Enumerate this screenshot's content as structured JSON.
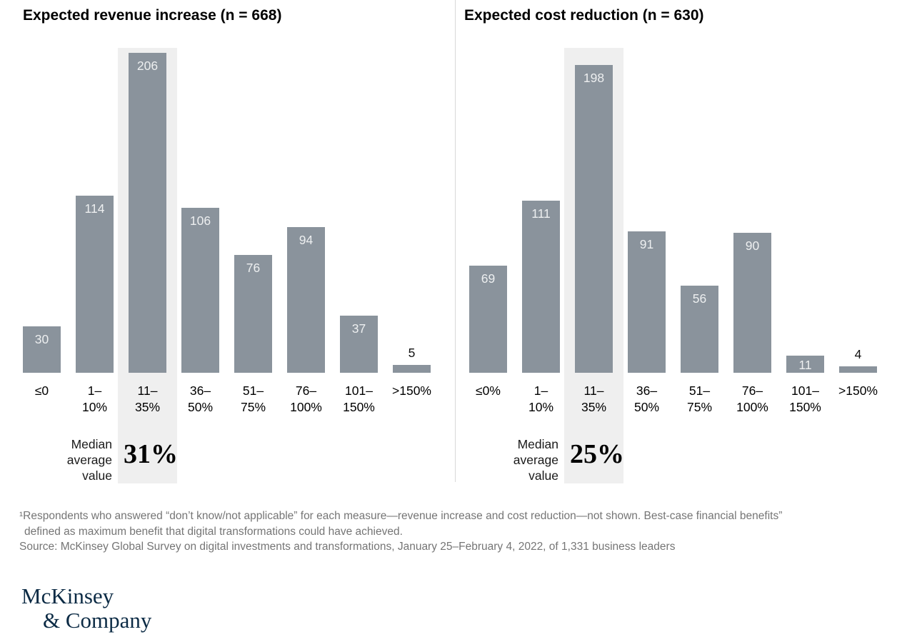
{
  "chart_data": [
    {
      "type": "bar",
      "title": "Expected revenue increase (n = 668)",
      "categories": [
        "≤0",
        "1–10%",
        "11–35%",
        "36–50%",
        "51–75%",
        "76–100%",
        "101–150%",
        ">150%"
      ],
      "category_label_lines": [
        [
          "≤0"
        ],
        [
          "1–",
          "10%"
        ],
        [
          "11–",
          "35%"
        ],
        [
          "36–",
          "50%"
        ],
        [
          "51–",
          "75%"
        ],
        [
          "76–",
          "100%"
        ],
        [
          "101–",
          "150%"
        ],
        [
          ">150%"
        ]
      ],
      "values": [
        30,
        114,
        206,
        106,
        76,
        94,
        37,
        5
      ],
      "highlight_index": 2,
      "highlighted_category": "11–35%",
      "median_label_lines": [
        "Median",
        "average",
        "value"
      ],
      "median_value": "31%",
      "ylim": [
        0,
        210
      ],
      "grid": false,
      "legend": "none"
    },
    {
      "type": "bar",
      "title": "Expected cost reduction (n = 630)",
      "categories": [
        "≤0%",
        "1–10%",
        "11–35%",
        "36–50%",
        "51–75%",
        "76–100%",
        "101–150%",
        ">150%"
      ],
      "category_label_lines": [
        [
          "≤0%"
        ],
        [
          "1–",
          "10%"
        ],
        [
          "11–",
          "35%"
        ],
        [
          "36–",
          "50%"
        ],
        [
          "51–",
          "75%"
        ],
        [
          "76–",
          "100%"
        ],
        [
          "101–",
          "150%"
        ],
        [
          ">150%"
        ]
      ],
      "values": [
        69,
        111,
        198,
        91,
        56,
        90,
        11,
        4
      ],
      "highlight_index": 2,
      "highlighted_category": "11–35%",
      "median_label_lines": [
        "Median",
        "average",
        "value"
      ],
      "median_value": "25%",
      "ylim": [
        0,
        210
      ],
      "grid": false,
      "legend": "none"
    }
  ],
  "footnote": {
    "line1": "¹Respondents who answered “don’t know/not applicable” for each measure—revenue increase and cost reduction—not shown. Best-case financial benefits”",
    "line2": "defined as maximum benefit that digital transformations could have achieved.",
    "line3": "Source: McKinsey Global Survey on digital investments and transformations, January 25–February 4, 2022, of 1,331 business leaders"
  },
  "logo": {
    "line1": "McKinsey",
    "line2": "& Company"
  },
  "colors": {
    "bar": "#8a939c",
    "highlight_band": "#efefef",
    "divider": "#d8d8d8",
    "bar_value_label": "#edeff0",
    "small_value_label": "#111111",
    "text": "#000000",
    "footnote_text": "#757575",
    "logo": "#0c2b45"
  }
}
